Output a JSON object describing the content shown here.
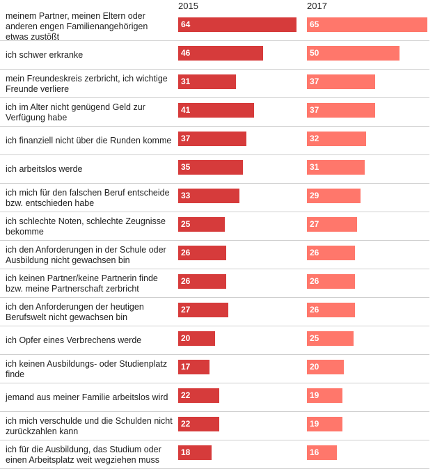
{
  "chart_data": {
    "type": "bar",
    "orientation": "horizontal",
    "categories": [
      "meinem Partner, meinen Eltern oder anderen engen Familienangehörigen etwas zustößt",
      "ich schwer erkranke",
      "mein Freundeskreis zerbricht, ich wichtige Freunde verliere",
      "ich im Alter nicht genügend Geld zur Verfügung habe",
      "ich finanziell nicht über die Runden komme",
      "ich arbeitslos werde",
      "ich mich für den falschen Beruf entscheide bzw. entschieden habe",
      "ich schlechte Noten, schlechte Zeugnisse bekomme",
      "ich den Anforderungen in der Schule oder Ausbildung nicht gewachsen bin",
      "ich keinen Partner/keine Partnerin finde bzw. meine Partnerschaft zerbricht",
      "ich den Anforderungen der heutigen Berufswelt nicht gewachsen bin",
      "ich Opfer eines Verbrechens werde",
      "ich keinen Ausbildungs- oder Studienplatz finde",
      "jemand aus meiner Familie arbeitslos wird",
      "ich mich verschulde und die Schulden nicht zurückzahlen kann",
      "ich für die Ausbildung, das Studium oder einen Arbeitsplatz weit wegziehen muss"
    ],
    "series": [
      {
        "name": "2015",
        "color": "#d63b3b",
        "values": [
          64,
          46,
          31,
          41,
          37,
          35,
          33,
          25,
          26,
          26,
          27,
          20,
          17,
          22,
          22,
          18
        ]
      },
      {
        "name": "2017",
        "color": "#ff776b",
        "values": [
          65,
          50,
          37,
          37,
          32,
          31,
          29,
          27,
          26,
          26,
          26,
          25,
          20,
          19,
          19,
          16
        ]
      }
    ],
    "xlim": [
      0,
      65
    ],
    "grid": false,
    "legend": "top"
  }
}
